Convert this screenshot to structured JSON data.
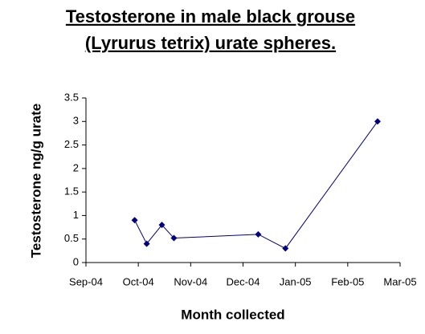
{
  "chart_data": {
    "type": "line",
    "title": [
      "Testosterone in male black grouse",
      "(Lyrurus tetrix) urate spheres."
    ],
    "x_label": "Month collected",
    "y_label": "Testosterone ng/g urate",
    "x": [
      0.93,
      1.16,
      1.45,
      1.68,
      3.29,
      3.81,
      5.57
    ],
    "series": [
      {
        "name": "Testosterone",
        "color": "#000080",
        "values": [
          0.9,
          0.4,
          0.8,
          0.52,
          0.6,
          0.3,
          3.0
        ]
      }
    ],
    "xlim": [
      0,
      6
    ],
    "xticks": [
      {
        "value": 0,
        "label": "Sep-04"
      },
      {
        "value": 1,
        "label": "Oct-04"
      },
      {
        "value": 2,
        "label": "Nov-04"
      },
      {
        "value": 3,
        "label": "Dec-04"
      },
      {
        "value": 4,
        "label": "Jan-05"
      },
      {
        "value": 5,
        "label": "Feb-05"
      },
      {
        "value": 6,
        "label": "Mar-05"
      }
    ],
    "ylim": [
      0,
      3.5
    ],
    "yticks": [
      0,
      0.5,
      1,
      1.5,
      2,
      2.5,
      3,
      3.5
    ],
    "grid": false
  }
}
